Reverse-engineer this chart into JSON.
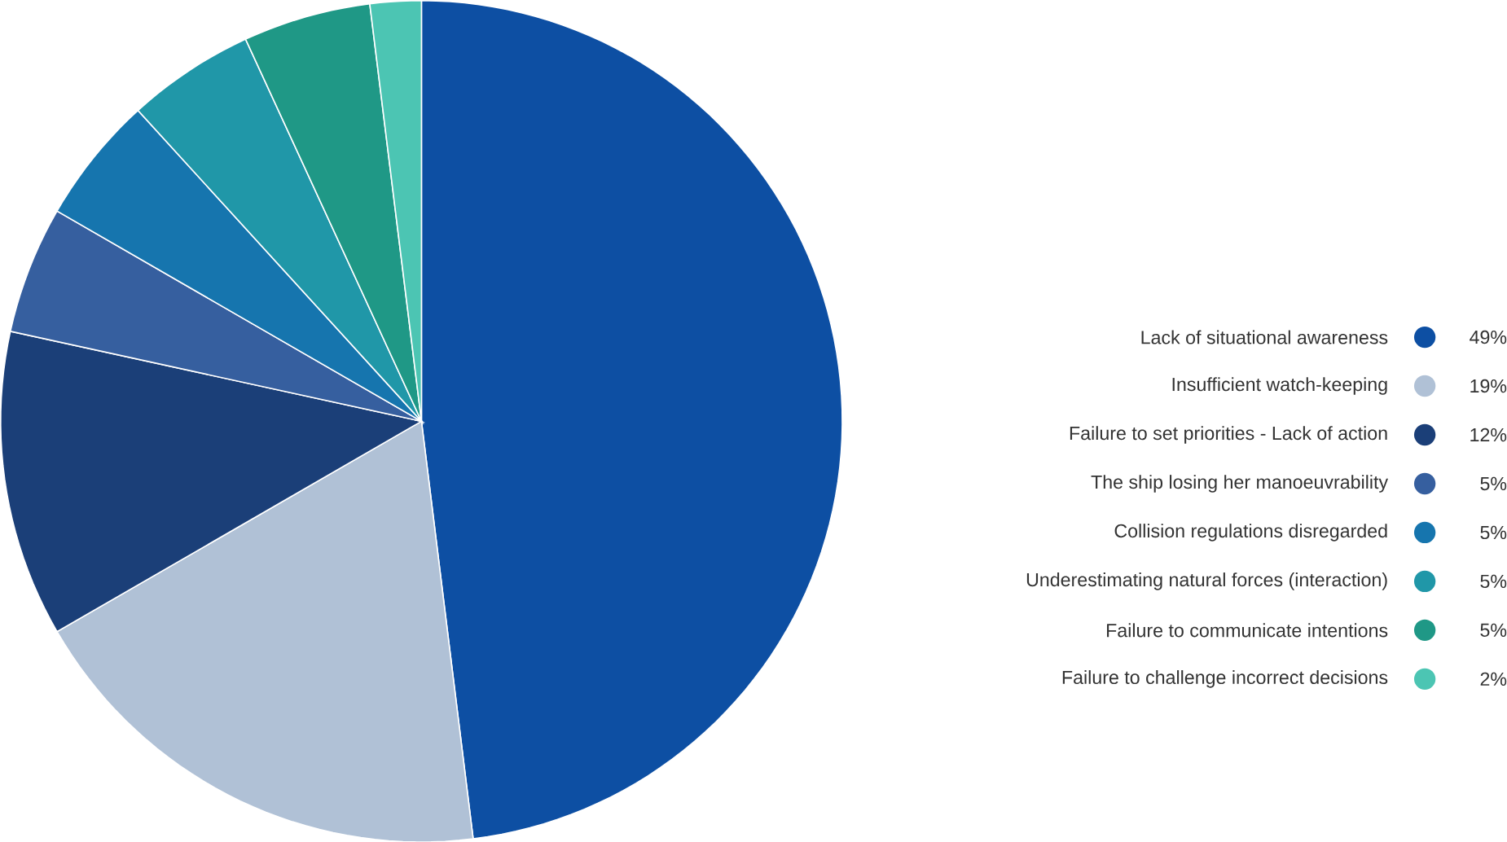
{
  "chart_data": {
    "type": "pie",
    "categories": [
      "Lack of situational awareness",
      "Insufficient watch-keeping",
      "Failure to set priorities - Lack of action",
      "The ship losing her manoeuvrability",
      "Collision regulations disregarded",
      "Underestimating natural forces (interaction)",
      "Failure to communicate intentions",
      "Failure to challenge incorrect decisions"
    ],
    "values": [
      49,
      19,
      12,
      5,
      5,
      5,
      5,
      2
    ],
    "value_labels": [
      "49%",
      "19%",
      "12%",
      "5%",
      "5%",
      "5%",
      "5%",
      "2%"
    ],
    "colors": [
      "#0d4fa3",
      "#b0c1d6",
      "#1b3f78",
      "#365f9f",
      "#1675ae",
      "#2097a8",
      "#1f9886",
      "#4cc5b3"
    ],
    "legend": "right"
  }
}
